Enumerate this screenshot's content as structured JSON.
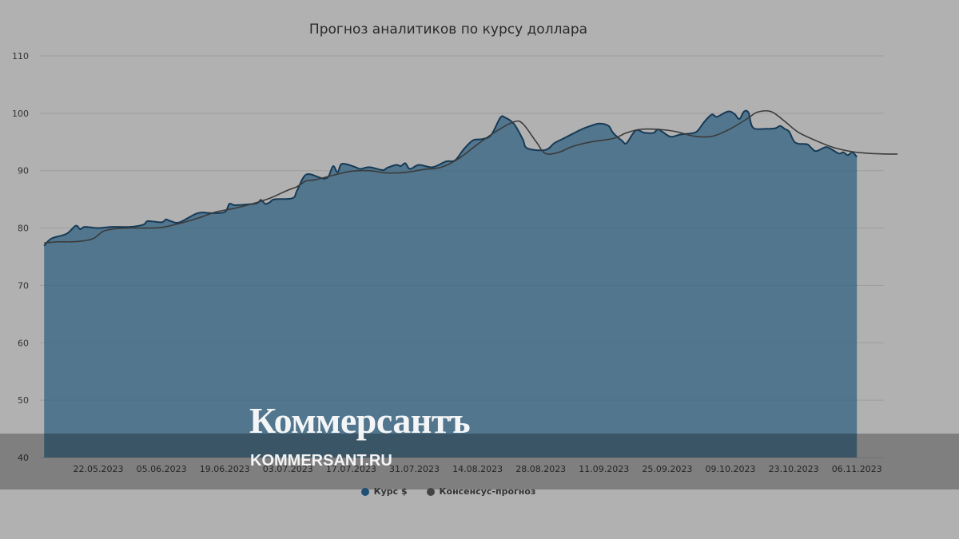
{
  "brand": {
    "logo": "Коммерсантъ",
    "url": "KOMMERSANT.RU"
  },
  "chart_data": {
    "type": "area",
    "title": "Прогноз аналитиков по курсу доллара",
    "xlabel": "",
    "ylabel": "",
    "ylim": [
      40,
      110
    ],
    "yticks": [
      40,
      50,
      60,
      70,
      80,
      90,
      100,
      110
    ],
    "grid": true,
    "legend_position": "bottom-center",
    "x_tick_labels": [
      "22.05.2023",
      "05.06.2023",
      "19.06.2023",
      "03.07.2023",
      "17.07.2023",
      "31.07.2023",
      "14.08.2023",
      "28.08.2023",
      "11.09.2023",
      "25.09.2023",
      "09.10.2023",
      "23.10.2023",
      "06.11.2023"
    ],
    "series": [
      {
        "name": "Курс $",
        "color": "#2d5f80",
        "kind": "area",
        "points": [
          [
            "2023-05-10",
            76.9
          ],
          [
            "2023-05-11",
            77.8
          ],
          [
            "2023-05-12",
            78.3
          ],
          [
            "2023-05-15",
            79.0
          ],
          [
            "2023-05-17",
            80.4
          ],
          [
            "2023-05-18",
            79.8
          ],
          [
            "2023-05-19",
            80.2
          ],
          [
            "2023-05-22",
            80.0
          ],
          [
            "2023-05-25",
            80.2
          ],
          [
            "2023-05-29",
            80.2
          ],
          [
            "2023-06-01",
            80.6
          ],
          [
            "2023-06-02",
            81.2
          ],
          [
            "2023-06-05",
            81.0
          ],
          [
            "2023-06-06",
            81.5
          ],
          [
            "2023-06-07",
            81.2
          ],
          [
            "2023-06-09",
            81.0
          ],
          [
            "2023-06-13",
            82.6
          ],
          [
            "2023-06-16",
            82.6
          ],
          [
            "2023-06-19",
            82.8
          ],
          [
            "2023-06-20",
            84.2
          ],
          [
            "2023-06-21",
            84.0
          ],
          [
            "2023-06-22",
            84.0
          ],
          [
            "2023-06-26",
            84.3
          ],
          [
            "2023-06-27",
            84.9
          ],
          [
            "2023-06-28",
            84.2
          ],
          [
            "2023-06-29",
            84.5
          ],
          [
            "2023-06-30",
            85.0
          ],
          [
            "2023-07-04",
            85.2
          ],
          [
            "2023-07-05",
            86.5
          ],
          [
            "2023-07-07",
            89.3
          ],
          [
            "2023-07-10",
            88.8
          ],
          [
            "2023-07-11",
            88.6
          ],
          [
            "2023-07-12",
            89.0
          ],
          [
            "2023-07-13",
            90.8
          ],
          [
            "2023-07-14",
            89.7
          ],
          [
            "2023-07-15",
            91.2
          ],
          [
            "2023-07-18",
            90.6
          ],
          [
            "2023-07-19",
            90.3
          ],
          [
            "2023-07-21",
            90.6
          ],
          [
            "2023-07-24",
            90.1
          ],
          [
            "2023-07-25",
            90.5
          ],
          [
            "2023-07-27",
            91.0
          ],
          [
            "2023-07-28",
            90.8
          ],
          [
            "2023-07-29",
            91.3
          ],
          [
            "2023-07-30",
            90.3
          ],
          [
            "2023-08-01",
            91.0
          ],
          [
            "2023-08-04",
            90.6
          ],
          [
            "2023-08-07",
            91.6
          ],
          [
            "2023-08-09",
            91.8
          ],
          [
            "2023-08-11",
            93.8
          ],
          [
            "2023-08-13",
            95.3
          ],
          [
            "2023-08-15",
            95.5
          ],
          [
            "2023-08-17",
            96.2
          ],
          [
            "2023-08-19",
            99.2
          ],
          [
            "2023-08-20",
            99.3
          ],
          [
            "2023-08-22",
            98.2
          ],
          [
            "2023-08-24",
            95.5
          ],
          [
            "2023-08-25",
            93.9
          ],
          [
            "2023-08-29",
            93.6
          ],
          [
            "2023-08-31",
            94.8
          ],
          [
            "2023-09-02",
            95.6
          ],
          [
            "2023-09-04",
            96.4
          ],
          [
            "2023-09-06",
            97.2
          ],
          [
            "2023-09-08",
            97.8
          ],
          [
            "2023-09-10",
            98.2
          ],
          [
            "2023-09-12",
            97.8
          ],
          [
            "2023-09-13",
            96.6
          ],
          [
            "2023-09-15",
            95.2
          ],
          [
            "2023-09-16",
            94.8
          ],
          [
            "2023-09-18",
            97.0
          ],
          [
            "2023-09-20",
            96.6
          ],
          [
            "2023-09-22",
            96.6
          ],
          [
            "2023-09-23",
            97.2
          ],
          [
            "2023-09-25",
            96.2
          ],
          [
            "2023-09-26",
            95.9
          ],
          [
            "2023-09-28",
            96.3
          ],
          [
            "2023-10-01",
            96.6
          ],
          [
            "2023-10-02",
            97.2
          ],
          [
            "2023-10-03",
            98.3
          ],
          [
            "2023-10-04",
            99.2
          ],
          [
            "2023-10-05",
            99.8
          ],
          [
            "2023-10-06",
            99.4
          ],
          [
            "2023-10-08",
            100.2
          ],
          [
            "2023-10-09",
            100.3
          ],
          [
            "2023-10-10",
            99.8
          ],
          [
            "2023-10-11",
            99.0
          ],
          [
            "2023-10-12",
            100.3
          ],
          [
            "2023-10-13",
            100.1
          ],
          [
            "2023-10-14",
            97.5
          ],
          [
            "2023-10-17",
            97.3
          ],
          [
            "2023-10-19",
            97.4
          ],
          [
            "2023-10-20",
            97.8
          ],
          [
            "2023-10-21",
            97.3
          ],
          [
            "2023-10-22",
            96.8
          ],
          [
            "2023-10-23",
            95.2
          ],
          [
            "2023-10-24",
            94.7
          ],
          [
            "2023-10-26",
            94.6
          ],
          [
            "2023-10-27",
            93.9
          ],
          [
            "2023-10-28",
            93.4
          ],
          [
            "2023-10-30",
            94.1
          ],
          [
            "2023-10-31",
            93.9
          ],
          [
            "2023-11-02",
            93.0
          ],
          [
            "2023-11-03",
            93.2
          ],
          [
            "2023-11-04",
            92.7
          ],
          [
            "2023-11-05",
            93.2
          ],
          [
            "2023-11-06",
            92.4
          ]
        ]
      },
      {
        "name": "Консенсус-прогноз",
        "color": "#3b3b3b",
        "kind": "line",
        "points": [
          [
            "2023-05-10",
            77.4
          ],
          [
            "2023-05-13",
            77.6
          ],
          [
            "2023-05-16",
            77.6
          ],
          [
            "2023-05-19",
            77.8
          ],
          [
            "2023-05-21",
            78.2
          ],
          [
            "2023-05-23",
            79.4
          ],
          [
            "2023-05-25",
            79.8
          ],
          [
            "2023-05-28",
            80.0
          ],
          [
            "2023-06-01",
            80.0
          ],
          [
            "2023-06-05",
            80.1
          ],
          [
            "2023-06-09",
            80.8
          ],
          [
            "2023-06-13",
            81.7
          ],
          [
            "2023-06-17",
            82.8
          ],
          [
            "2023-06-21",
            83.4
          ],
          [
            "2023-06-25",
            84.2
          ],
          [
            "2023-06-29",
            85.2
          ],
          [
            "2023-07-03",
            86.6
          ],
          [
            "2023-07-05",
            87.2
          ],
          [
            "2023-07-07",
            88.2
          ],
          [
            "2023-07-09",
            88.4
          ],
          [
            "2023-07-13",
            89.2
          ],
          [
            "2023-07-17",
            89.9
          ],
          [
            "2023-07-21",
            90.0
          ],
          [
            "2023-07-25",
            89.6
          ],
          [
            "2023-07-29",
            89.7
          ],
          [
            "2023-08-02",
            90.2
          ],
          [
            "2023-08-06",
            90.6
          ],
          [
            "2023-08-10",
            92.2
          ],
          [
            "2023-08-14",
            94.6
          ],
          [
            "2023-08-18",
            96.8
          ],
          [
            "2023-08-22",
            98.5
          ],
          [
            "2023-08-24",
            98.2
          ],
          [
            "2023-08-27",
            95.0
          ],
          [
            "2023-08-29",
            93.0
          ],
          [
            "2023-09-01",
            93.2
          ],
          [
            "2023-09-04",
            94.2
          ],
          [
            "2023-09-08",
            95.0
          ],
          [
            "2023-09-13",
            95.6
          ],
          [
            "2023-09-16",
            96.6
          ],
          [
            "2023-09-19",
            97.2
          ],
          [
            "2023-09-23",
            97.2
          ],
          [
            "2023-09-27",
            96.8
          ],
          [
            "2023-10-01",
            96.0
          ],
          [
            "2023-10-05",
            96.0
          ],
          [
            "2023-10-09",
            97.3
          ],
          [
            "2023-10-13",
            99.2
          ],
          [
            "2023-10-15",
            100.2
          ],
          [
            "2023-10-18",
            100.3
          ],
          [
            "2023-10-21",
            98.6
          ],
          [
            "2023-10-24",
            96.7
          ],
          [
            "2023-10-28",
            95.2
          ],
          [
            "2023-11-01",
            94.0
          ],
          [
            "2023-11-05",
            93.3
          ],
          [
            "2023-11-09",
            93.0
          ],
          [
            "2023-11-13",
            92.9
          ],
          [
            "2023-11-15",
            92.9
          ]
        ]
      }
    ]
  }
}
